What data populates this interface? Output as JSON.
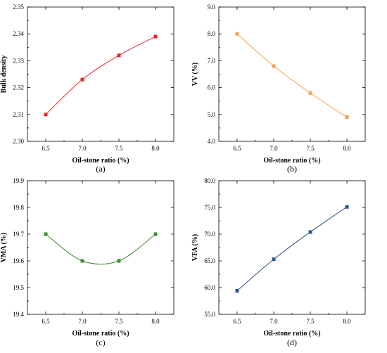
{
  "chart_data": [
    {
      "type": "line",
      "panel_label": "(a)",
      "xlabel": "Oil-stone ratio (%)",
      "ylabel": "Bulk density",
      "x": [
        6.5,
        7.0,
        7.5,
        8.0
      ],
      "x_tick_labels": [
        "6.5",
        "7.0",
        "7.5",
        "8.0"
      ],
      "xlim": [
        6.25,
        8.25
      ],
      "ylim": [
        2.3,
        2.35
      ],
      "y_ticks": [
        2.3,
        2.31,
        2.32,
        2.33,
        2.34,
        2.35
      ],
      "y_tick_labels": [
        "2.30",
        "2.31",
        "2.32",
        "2.33",
        "2.34",
        "2.35"
      ],
      "series": [
        {
          "values": [
            2.31,
            2.323,
            2.332,
            2.339
          ],
          "color": "#e8232a"
        }
      ],
      "grid": false,
      "legend": "none"
    },
    {
      "type": "line",
      "panel_label": "(b)",
      "xlabel": "Oil-stone ratio (%)",
      "ylabel": "VV (%)",
      "x": [
        6.5,
        7.0,
        7.5,
        8.0
      ],
      "x_tick_labels": [
        "6.5",
        "7.0",
        "7.5",
        "8.0"
      ],
      "xlim": [
        6.25,
        8.25
      ],
      "ylim": [
        4.0,
        9.0
      ],
      "y_ticks": [
        4.0,
        5.0,
        6.0,
        7.0,
        8.0,
        9.0
      ],
      "y_tick_labels": [
        "4.0",
        "5.0",
        "6.0",
        "7.0",
        "8.0",
        "9.0"
      ],
      "series": [
        {
          "values": [
            8.0,
            6.8,
            5.8,
            4.9
          ],
          "color": "#f5a24a"
        }
      ],
      "grid": false,
      "legend": "none"
    },
    {
      "type": "line",
      "panel_label": "(c)",
      "xlabel": "Oil-stone ratio (%)",
      "ylabel": "VMA (%)",
      "x": [
        6.5,
        7.0,
        7.5,
        8.0
      ],
      "x_tick_labels": [
        "6.5",
        "7.0",
        "7.5",
        "8.0"
      ],
      "xlim": [
        6.25,
        8.25
      ],
      "ylim": [
        19.4,
        19.9
      ],
      "y_ticks": [
        19.4,
        19.5,
        19.6,
        19.7,
        19.8,
        19.9
      ],
      "y_tick_labels": [
        "19.4",
        "19.5",
        "19.6",
        "19.7",
        "19.8",
        "19.9"
      ],
      "series": [
        {
          "values": [
            19.7,
            19.6,
            19.6,
            19.7
          ],
          "color": "#3d8a2e"
        }
      ],
      "grid": false,
      "legend": "none"
    },
    {
      "type": "line",
      "panel_label": "(d)",
      "xlabel": "Oil-stone ratio (%)",
      "ylabel": "VFA (%)",
      "x": [
        6.5,
        7.0,
        7.5,
        8.0
      ],
      "x_tick_labels": [
        "6.5",
        "7.0",
        "7.5",
        "8.0"
      ],
      "xlim": [
        6.25,
        8.25
      ],
      "ylim": [
        55.0,
        80.0
      ],
      "y_ticks": [
        55.0,
        60.0,
        65.0,
        70.0,
        75.0,
        80.0
      ],
      "y_tick_labels": [
        "55.0",
        "60.0",
        "65.0",
        "70.0",
        "75.0",
        "80.0"
      ],
      "series": [
        {
          "values": [
            59.4,
            65.3,
            70.4,
            75.1
          ],
          "color": "#2c5487"
        }
      ],
      "grid": false,
      "legend": "none"
    }
  ]
}
